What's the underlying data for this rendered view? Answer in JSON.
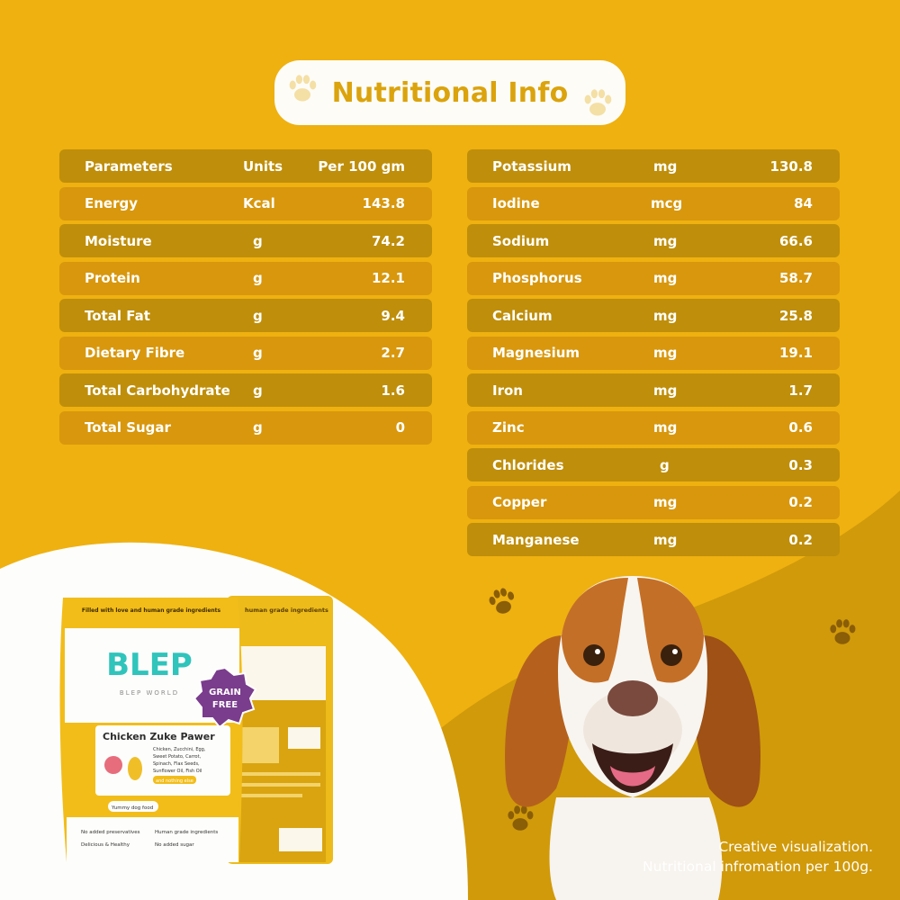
{
  "title": "Nutritional Info",
  "colors": {
    "background": "#efb110",
    "row_dark": "#bf8e0a",
    "row_light": "#d8970d",
    "title_text": "#dba30c",
    "lower_wave": "#d19a0a"
  },
  "left_table": {
    "header": {
      "name": "Parameters",
      "unit": "Units",
      "value": "Per 100 gm"
    },
    "rows": [
      {
        "name": "Energy",
        "unit": "Kcal",
        "value": "143.8"
      },
      {
        "name": "Moisture",
        "unit": "g",
        "value": "74.2"
      },
      {
        "name": "Protein",
        "unit": "g",
        "value": "12.1"
      },
      {
        "name": "Total Fat",
        "unit": "g",
        "value": "9.4"
      },
      {
        "name": "Dietary Fibre",
        "unit": "g",
        "value": "2.7"
      },
      {
        "name": "Total Carbohydrate",
        "unit": "g",
        "value": "1.6"
      },
      {
        "name": "Total Sugar",
        "unit": "g",
        "value": "0"
      }
    ]
  },
  "right_table": {
    "rows": [
      {
        "name": "Potassium",
        "unit": "mg",
        "value": "130.8"
      },
      {
        "name": "Iodine",
        "unit": "mcg",
        "value": "84"
      },
      {
        "name": "Sodium",
        "unit": "mg",
        "value": "66.6"
      },
      {
        "name": "Phosphorus",
        "unit": "mg",
        "value": "58.7"
      },
      {
        "name": "Calcium",
        "unit": "mg",
        "value": "25.8"
      },
      {
        "name": "Magnesium",
        "unit": "mg",
        "value": "19.1"
      },
      {
        "name": "Iron",
        "unit": "mg",
        "value": "1.7"
      },
      {
        "name": "Zinc",
        "unit": "mg",
        "value": "0.6"
      },
      {
        "name": "Chlorides",
        "unit": "g",
        "value": "0.3"
      },
      {
        "name": "Copper",
        "unit": "mg",
        "value": "0.2"
      },
      {
        "name": "Manganese",
        "unit": "mg",
        "value": "0.2"
      }
    ]
  },
  "pouch": {
    "top_banner": "Filled with love and human grade ingredients",
    "back_banner": "human grade ingredients",
    "brand": "BLEP",
    "brand_sub": "BLEP WORLD",
    "badge_line1": "GRAIN",
    "badge_line2": "FREE",
    "product_name": "Chicken Zuke Pawer",
    "ingredients": "Chicken, Zucchini, Egg, Sweet Potato, Carrot, Spinach, Flax Seeds, Sunflower Oil, Fish Oil",
    "ingredients_tail": "and nothing else",
    "tag": "Yummy dog food",
    "features": [
      "No added preservatives",
      "Human grade ingredients",
      "Delicious & Healthy",
      "No added sugar"
    ]
  },
  "caption": {
    "line1": "Creative visualization.",
    "line2": "Nutritional infromation per 100g."
  }
}
